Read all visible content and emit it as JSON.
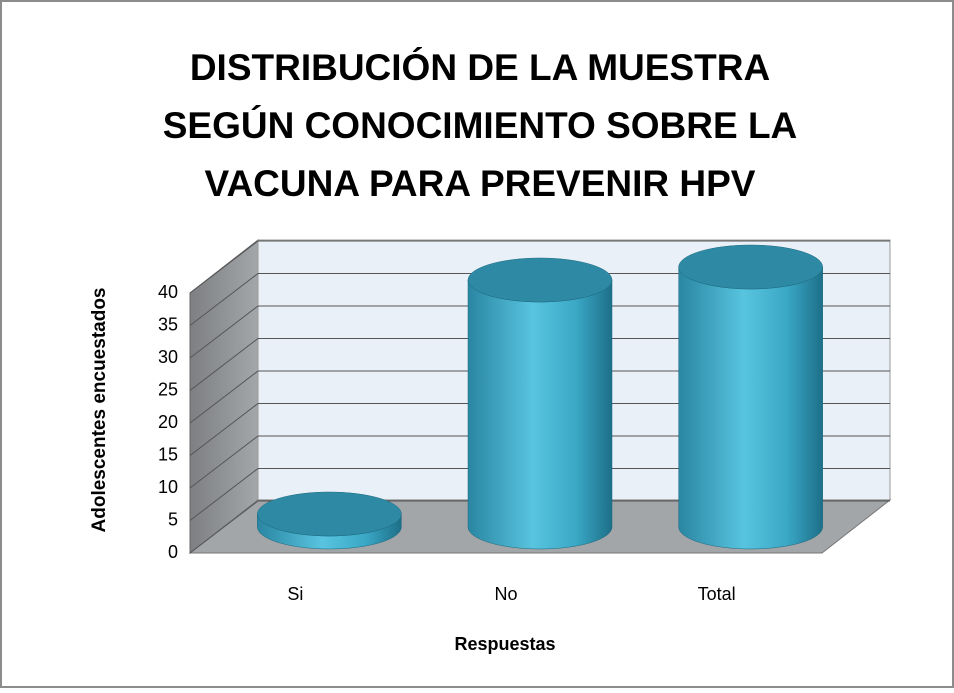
{
  "chart_data": {
    "type": "bar3d",
    "title": [
      "DISTRIBUCIÓN DE LA MUESTRA",
      "SEGÚN CONOCIMIENTO SOBRE LA",
      "VACUNA PARA PREVENIR HPV"
    ],
    "x_label": "Respuestas",
    "y_label": "Adolescentes encuestados",
    "categories": [
      "Si",
      "No",
      "Total"
    ],
    "values": [
      2,
      38,
      40
    ],
    "color": "#3fb0cf",
    "ylim": [
      0,
      40
    ],
    "yticks": [
      0,
      5,
      10,
      15,
      20,
      25,
      30,
      35,
      40
    ],
    "grid": true
  }
}
